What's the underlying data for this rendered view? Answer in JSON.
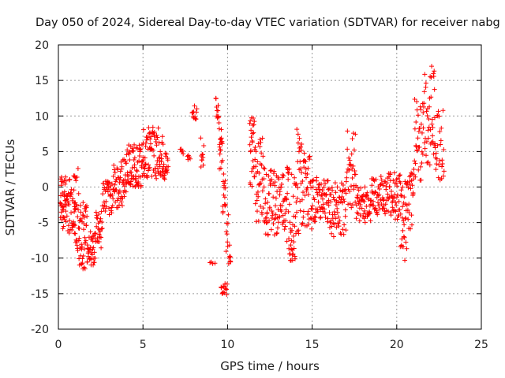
{
  "chart_data": {
    "type": "scatter",
    "title": "Day 050 of 2024, Sidereal Day-to-day VTEC variation (SDTVAR) for receiver nabg",
    "xlabel": "GPS time / hours",
    "ylabel": "SDTVAR / TECUs",
    "xlim": [
      0,
      25
    ],
    "ylim": [
      -20,
      20
    ],
    "x_ticks": [
      0,
      5,
      10,
      15,
      20,
      25
    ],
    "y_ticks": [
      -20,
      -15,
      -10,
      -5,
      0,
      5,
      10,
      15,
      20
    ],
    "grid": true,
    "marker": "plus",
    "color": "#ff0000",
    "series": [
      {
        "name": "SDTVAR",
        "segments": [
          {
            "x0": 0.1,
            "x1": 0.5,
            "y_lo": -6,
            "y_hi": 1.5,
            "n": 40
          },
          {
            "x0": 0.5,
            "x1": 1.0,
            "y_lo": -7,
            "y_hi": 1.5,
            "n": 35
          },
          {
            "x0": 0.9,
            "x1": 1.2,
            "y_lo": -9,
            "y_hi": 3,
            "n": 25
          },
          {
            "x0": 1.2,
            "x1": 1.7,
            "y_lo": -12,
            "y_hi": -2,
            "n": 45
          },
          {
            "x0": 1.7,
            "x1": 2.2,
            "y_lo": -11,
            "y_hi": -6,
            "n": 35
          },
          {
            "x0": 2.2,
            "x1": 2.6,
            "y_lo": -9,
            "y_hi": -3,
            "n": 25
          },
          {
            "x0": 2.6,
            "x1": 3.2,
            "y_lo": -4,
            "y_hi": 1,
            "n": 35
          },
          {
            "x0": 3.2,
            "x1": 4.0,
            "y_lo": -3,
            "y_hi": 4,
            "n": 55
          },
          {
            "x0": 4.0,
            "x1": 5.0,
            "y_lo": 0,
            "y_hi": 6,
            "n": 70
          },
          {
            "x0": 5.0,
            "x1": 6.3,
            "y_lo": 1,
            "y_hi": 8.5,
            "n": 90
          },
          {
            "x0": 6.3,
            "x1": 6.5,
            "y_lo": 2,
            "y_hi": 5,
            "n": 12
          },
          {
            "x0": 7.2,
            "x1": 7.4,
            "y_lo": 4.5,
            "y_hi": 5.5,
            "n": 5
          },
          {
            "x0": 7.6,
            "x1": 7.8,
            "y_lo": 3.5,
            "y_hi": 4.5,
            "n": 5
          },
          {
            "x0": 7.9,
            "x1": 8.2,
            "y_lo": 9.5,
            "y_hi": 11.5,
            "n": 12
          },
          {
            "x0": 8.4,
            "x1": 8.6,
            "y_lo": 2,
            "y_hi": 7,
            "n": 10
          },
          {
            "x0": 8.9,
            "x1": 9.3,
            "y_lo": -11,
            "y_hi": -10.5,
            "n": 4
          },
          {
            "x0": 9.3,
            "x1": 9.5,
            "y_lo": 9,
            "y_hi": 12.8,
            "n": 12
          },
          {
            "x0": 9.5,
            "x1": 9.7,
            "y_lo": 2,
            "y_hi": 9,
            "n": 18
          },
          {
            "x0": 9.7,
            "x1": 9.9,
            "y_lo": -4,
            "y_hi": 2,
            "n": 15
          },
          {
            "x0": 9.6,
            "x1": 10.0,
            "y_lo": -15.3,
            "y_hi": -13.5,
            "n": 14
          },
          {
            "x0": 9.9,
            "x1": 10.2,
            "y_lo": -11,
            "y_hi": -3,
            "n": 15
          },
          {
            "x0": 11.3,
            "x1": 11.6,
            "y_lo": 0,
            "y_hi": 10,
            "n": 25
          },
          {
            "x0": 11.6,
            "x1": 12.1,
            "y_lo": -5,
            "y_hi": 7,
            "n": 35
          },
          {
            "x0": 12.1,
            "x1": 12.8,
            "y_lo": -7,
            "y_hi": 3,
            "n": 45
          },
          {
            "x0": 12.8,
            "x1": 13.5,
            "y_lo": -7,
            "y_hi": 2,
            "n": 45
          },
          {
            "x0": 13.5,
            "x1": 14.0,
            "y_lo": -11,
            "y_hi": 4,
            "n": 40
          },
          {
            "x0": 14.0,
            "x1": 14.4,
            "y_lo": -8,
            "y_hi": 8.5,
            "n": 30
          },
          {
            "x0": 14.4,
            "x1": 15.0,
            "y_lo": -6,
            "y_hi": 5,
            "n": 40
          },
          {
            "x0": 15.0,
            "x1": 16.0,
            "y_lo": -5,
            "y_hi": 1.5,
            "n": 60
          },
          {
            "x0": 16.0,
            "x1": 17.0,
            "y_lo": -7,
            "y_hi": 1,
            "n": 60
          },
          {
            "x0": 17.0,
            "x1": 17.6,
            "y_lo": -3,
            "y_hi": 8,
            "n": 35
          },
          {
            "x0": 17.6,
            "x1": 18.5,
            "y_lo": -5,
            "y_hi": 0,
            "n": 55
          },
          {
            "x0": 18.5,
            "x1": 19.5,
            "y_lo": -4,
            "y_hi": 1.5,
            "n": 60
          },
          {
            "x0": 19.5,
            "x1": 20.2,
            "y_lo": -5,
            "y_hi": 2,
            "n": 45
          },
          {
            "x0": 20.2,
            "x1": 20.6,
            "y_lo": -12,
            "y_hi": 1,
            "n": 30
          },
          {
            "x0": 20.6,
            "x1": 21.0,
            "y_lo": -6,
            "y_hi": 2,
            "n": 25
          },
          {
            "x0": 21.0,
            "x1": 21.5,
            "y_lo": 0,
            "y_hi": 13,
            "n": 30
          },
          {
            "x0": 21.5,
            "x1": 22.0,
            "y_lo": 3,
            "y_hi": 16,
            "n": 30
          },
          {
            "x0": 22.0,
            "x1": 22.3,
            "y_lo": 4,
            "y_hi": 18,
            "n": 20
          },
          {
            "x0": 22.3,
            "x1": 22.8,
            "y_lo": 0.5,
            "y_hi": 11,
            "n": 25
          }
        ]
      }
    ]
  }
}
